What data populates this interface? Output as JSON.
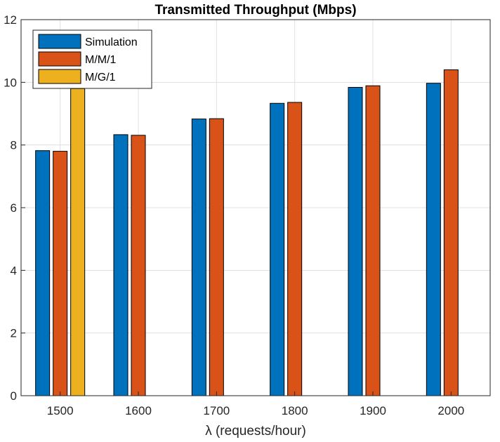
{
  "chart_data": {
    "type": "bar",
    "title": "Transmitted Throughput (Mbps)",
    "xlabel": "λ (requests/hour)",
    "ylabel": "",
    "categories": [
      "1500",
      "1600",
      "1700",
      "1800",
      "1900",
      "2000"
    ],
    "ylim": [
      0,
      12
    ],
    "yticks": [
      "0",
      "2",
      "4",
      "6",
      "8",
      "10",
      "12"
    ],
    "grid": true,
    "legend_position": "top-left",
    "series": [
      {
        "name": "Simulation",
        "color": "#0072BD",
        "values": [
          7.82,
          8.33,
          8.83,
          9.33,
          9.84,
          9.97
        ]
      },
      {
        "name": "M/M/1",
        "color": "#D95319",
        "values": [
          7.8,
          8.31,
          8.84,
          9.36,
          9.89,
          10.4
        ]
      },
      {
        "name": "M/G/1",
        "color": "#EDB120",
        "values": [
          9.8,
          null,
          null,
          null,
          null,
          null
        ]
      }
    ]
  }
}
